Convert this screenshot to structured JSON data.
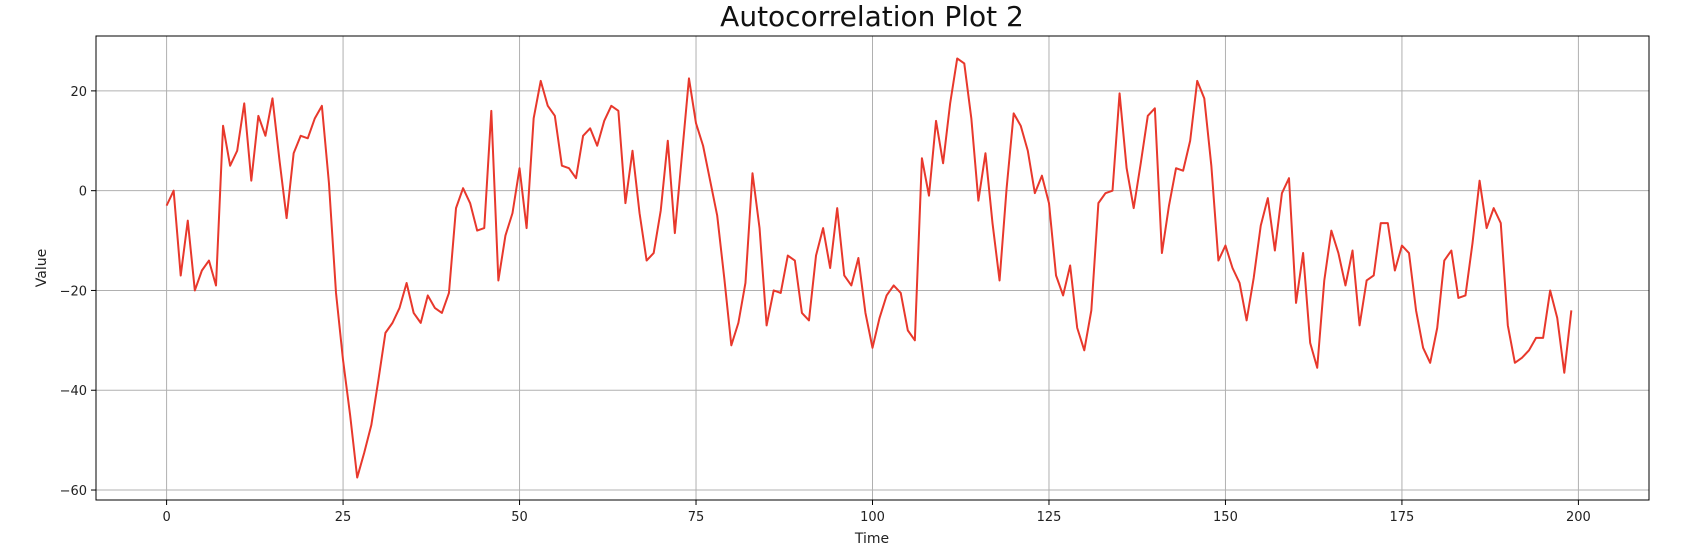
{
  "chart_data": {
    "type": "line",
    "title": "Autocorrelation Plot 2",
    "xlabel": "Time",
    "ylabel": "Value",
    "xlim": [
      -10,
      210
    ],
    "ylim": [
      -62,
      31
    ],
    "xticks": [
      0,
      25,
      50,
      75,
      100,
      125,
      150,
      175,
      200
    ],
    "yticks": [
      -60,
      -40,
      -20,
      0,
      20
    ],
    "xtick_labels": [
      "0",
      "25",
      "50",
      "75",
      "100",
      "125",
      "150",
      "175",
      "200"
    ],
    "ytick_labels": [
      "−60",
      "−40",
      "−20",
      "0",
      "20"
    ],
    "grid": true,
    "line_color": "#e8382c",
    "series": [
      {
        "values": [
          -3,
          0,
          -17,
          -6,
          -20,
          -16,
          -14,
          -19,
          13,
          5,
          8,
          17.5,
          2,
          15,
          11,
          18.5,
          6,
          -5.5,
          7.5,
          11,
          10.5,
          14.5,
          17,
          1.5,
          -20.5,
          -34,
          -45,
          -57.5,
          -52.5,
          -47,
          -38,
          -28.5,
          -26.5,
          -23.5,
          -18.5,
          -24.5,
          -26.5,
          -21,
          -23.5,
          -24.5,
          -20.5,
          -3.5,
          0.5,
          -2.5,
          -8,
          -7.5,
          16,
          -18,
          -9,
          -4.5,
          4.5,
          -7.5,
          14.5,
          22,
          17,
          15,
          5,
          4.5,
          2.5,
          11,
          12.5,
          9,
          14,
          17,
          16,
          -2.5,
          8,
          -4.5,
          -14,
          -12.5,
          -4,
          10,
          -8.5,
          7,
          22.5,
          13.5,
          9,
          2,
          -5,
          -17.5,
          -31,
          -26.5,
          -18.5,
          3.5,
          -7.5,
          -27,
          -20,
          -20.5,
          -13,
          -14,
          -24.5,
          -26,
          -13,
          -7.5,
          -15.5,
          -3.5,
          -17,
          -19,
          -13.5,
          -24.5,
          -31.5,
          -25.5,
          -21,
          -19,
          -20.5,
          -28,
          -30,
          6.5,
          -1,
          14,
          5.5,
          17.5,
          26.5,
          25.5,
          14.5,
          -2,
          7.5,
          -6.5,
          -18,
          0.5,
          15.5,
          13,
          8,
          -0.5,
          3,
          -2.5,
          -17,
          -21,
          -15,
          -27.5,
          -32,
          -24,
          -2.5,
          -0.5,
          0,
          19.5,
          4.5,
          -3.5,
          5.5,
          15,
          16.5,
          -12.5,
          -3,
          4.5,
          4,
          10,
          22,
          18.5,
          5,
          -14,
          -11,
          -15.5,
          -18.5,
          -26,
          -17.5,
          -7,
          -1.5,
          -12,
          -0.5,
          2.5,
          -22.5,
          -12.5,
          -30.5,
          -35.5,
          -18,
          -8,
          -12.5,
          -19,
          -12,
          -27,
          -18,
          -17,
          -6.5,
          -6.5,
          -16,
          -11,
          -12.5,
          -24,
          -31.5,
          -34.5,
          -27.5,
          -14,
          -12,
          -21.5,
          -21,
          -10.5,
          2,
          -7.5,
          -3.5,
          -6.5,
          -27,
          -34.5,
          -33.5,
          -32,
          -29.5,
          -29.5,
          -20,
          -25.5,
          -36.5,
          -24
        ]
      }
    ]
  }
}
